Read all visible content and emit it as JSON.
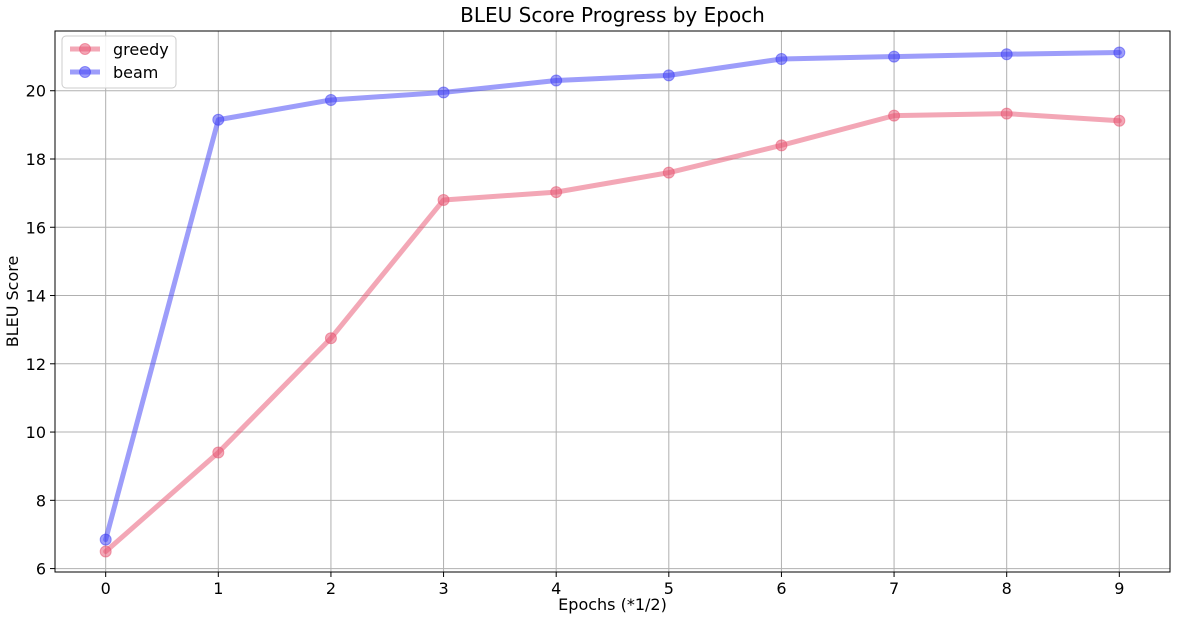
{
  "chart_data": {
    "type": "line",
    "title": "BLEU Score Progress by Epoch",
    "xlabel": "Epochs (*1/2)",
    "ylabel": "BLEU Score",
    "x": [
      0,
      1,
      2,
      3,
      4,
      5,
      6,
      7,
      8,
      9
    ],
    "xlim": [
      -0.45,
      9.45
    ],
    "ylim": [
      5.9,
      21.75
    ],
    "xticks": [
      0,
      1,
      2,
      3,
      4,
      5,
      6,
      7,
      8,
      9
    ],
    "yticks": [
      6,
      8,
      10,
      12,
      14,
      16,
      18,
      20
    ],
    "grid": true,
    "legend_position": "upper-left",
    "series": [
      {
        "name": "greedy",
        "color": "#e8506e",
        "values": [
          6.5,
          9.4,
          12.75,
          16.8,
          17.03,
          17.6,
          18.4,
          19.27,
          19.33,
          19.12
        ]
      },
      {
        "name": "beam",
        "color": "#3b3bf5",
        "values": [
          6.85,
          19.15,
          19.73,
          19.95,
          20.3,
          20.45,
          20.93,
          21.0,
          21.07,
          21.12
        ]
      }
    ]
  }
}
